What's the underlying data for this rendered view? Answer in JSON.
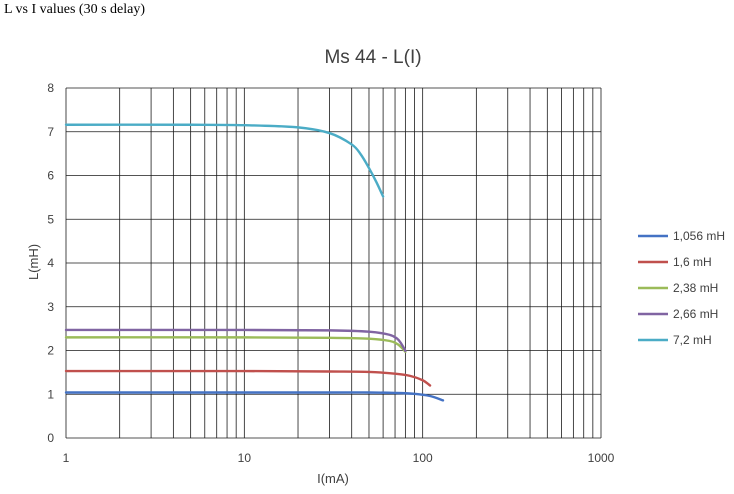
{
  "page": {
    "heading": "L vs I values (30 s delay)"
  },
  "chart_data": {
    "type": "line",
    "title": "Ms 44 - L(I)",
    "xlabel": "I(mA)",
    "ylabel": "L(mH)",
    "xscale": "log",
    "xlim": [
      1,
      1000
    ],
    "ylim": [
      0,
      8
    ],
    "x_ticks": [
      "1",
      "10",
      "100",
      "1000"
    ],
    "y_ticks": [
      "0",
      "1",
      "2",
      "3",
      "4",
      "5",
      "6",
      "7",
      "8"
    ],
    "grid": true,
    "legend_position": "right",
    "series": [
      {
        "name": "1,056 mH",
        "color": "#4472C4",
        "x": [
          1,
          10,
          30,
          50,
          70,
          90,
          110,
          130
        ],
        "y": [
          1.04,
          1.04,
          1.04,
          1.04,
          1.03,
          1.01,
          0.96,
          0.86
        ]
      },
      {
        "name": "1,6 mH",
        "color": "#C0504D",
        "x": [
          1,
          10,
          30,
          50,
          70,
          85,
          100,
          110
        ],
        "y": [
          1.53,
          1.53,
          1.52,
          1.51,
          1.47,
          1.42,
          1.32,
          1.2
        ]
      },
      {
        "name": "2,38 mH",
        "color": "#9BBB59",
        "x": [
          1,
          10,
          30,
          50,
          65,
          72,
          76,
          80
        ],
        "y": [
          2.3,
          2.3,
          2.29,
          2.27,
          2.22,
          2.15,
          2.07,
          1.97
        ]
      },
      {
        "name": "2,66 mH",
        "color": "#8064A2",
        "x": [
          1,
          10,
          30,
          50,
          65,
          72,
          76,
          80
        ],
        "y": [
          2.47,
          2.47,
          2.46,
          2.43,
          2.36,
          2.27,
          2.15,
          1.99
        ]
      },
      {
        "name": "7,2 mH",
        "color": "#4BACC6",
        "x": [
          1,
          5,
          10,
          20,
          30,
          40,
          45,
          50,
          55,
          60
        ],
        "y": [
          7.16,
          7.16,
          7.15,
          7.1,
          6.97,
          6.71,
          6.48,
          6.17,
          5.85,
          5.52
        ]
      }
    ]
  }
}
